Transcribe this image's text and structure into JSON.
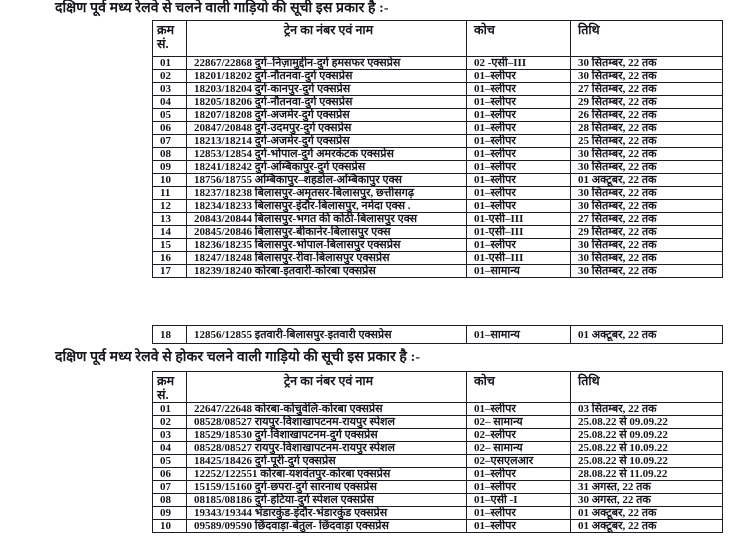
{
  "document": {
    "heading1": "दक्षिण पूर्व मध्य रेलवे से चलने वाली गाड़ियो की सूची इस प्रकार है :-",
    "heading2": "दक्षिण पूर्व मध्य रेलवे से होकर चलने वाली गाड़ियो की सूची इस प्रकार है :-"
  },
  "columns": {
    "sno": "क्रम सं.",
    "train": "ट्रेन का नंबर एवं नाम",
    "coach": "कोच",
    "date": "तिथि"
  },
  "tables": {
    "main": {
      "rows": [
        [
          "01",
          "22867/22868 दुर्ग–निज़ामुद्दीन-दुर्ग हमसफर एक्सप्रेस",
          "02 -एसी–III",
          "30 सितम्बर, 22 तक"
        ],
        [
          "02",
          "18201/18202 दुर्ग-नौतनवा-दुर्ग  एक्सप्रेस",
          "01–स्लीपर",
          "30 सितम्बर, 22 तक"
        ],
        [
          "03",
          "18203/18204 दुर्ग-कानपुर-दुर्ग  एक्सप्रेस",
          "01–स्लीपर",
          "27 सितम्बर, 22 तक"
        ],
        [
          "04",
          "18205/18206 दुर्ग-नौतनवा-दुर्ग  एक्सप्रेस",
          "01–स्लीपर",
          "29 सितम्बर, 22 तक"
        ],
        [
          "05",
          "18207/18208 दुर्ग-अजमेर-दुर्ग  एक्सप्रेस",
          "01–स्लीपर",
          "26 सितम्बर, 22 तक"
        ],
        [
          "06",
          "20847/20848 दुर्ग-उदमपुर-दुर्ग  एक्सप्रेस",
          "01–स्लीपर",
          "28 सितम्बर, 22 तक"
        ],
        [
          "07",
          "18213/18214 दुर्ग-अजमेर-दुर्ग  एक्सप्रेस",
          "01–स्लीपर",
          "25 सितम्बर, 22 तक"
        ],
        [
          "08",
          "12853/12854 दुर्ग-भोपाल-दुर्ग अमरकंटक  एक्सप्रेस",
          "01–स्लीपर",
          "30 सितम्बर, 22 तक"
        ],
        [
          "09",
          "18241/18242 दुर्ग-अम्बिकापुर-दुर्ग  एक्सप्रेस",
          "01–स्लीपर",
          "30 सितम्बर, 22 तक"
        ],
        [
          "10",
          "18756/18755 अम्बिकापुर–शहडोल-अम्बिकापुर एक्स",
          "01–स्लीपर",
          "01 अक्टूबर, 22 तक"
        ],
        [
          "11",
          "18237/18238 बिलासपुर-अमृतसर-बिलासपुर, छत्तीसगढ़",
          "01–स्लीपर",
          "30 सितम्बर, 22 तक"
        ],
        [
          "12",
          "18234/18233 बिलासपुर-इंदौर-बिलासपुर, नर्मदा एक्स .",
          "01–स्लीपर",
          "30 सितम्बर, 22 तक"
        ],
        [
          "13",
          "20843/20844 बिलासपुर-भगत की कोठी-बिलासपुर एक्स",
          "01-एसी–III",
          "27 सितम्बर, 22 तक"
        ],
        [
          "14",
          "20845/20846 बिलासपुर-बीकानेर-बिलासपुर एक्स",
          "01-एसी–III",
          "29 सितम्बर, 22 तक"
        ],
        [
          "15",
          "18236/18235 बिलासपुर-भोपाल-बिलासपुर एक्सप्रेस",
          "01–स्लीपर",
          "30 सितम्बर, 22 तक"
        ],
        [
          "16",
          "18247/18248 बिलासपुर-रीवा-बिलासपुर एक्सप्रेस",
          "01-एसी–III",
          "30 सितम्बर, 22 तक"
        ],
        [
          "17",
          "18239/18240 कोरबा-इतवारी-कोरबा एक्सप्रेस",
          "01–सामान्य",
          "30 सितम्बर, 22 तक"
        ]
      ]
    },
    "continuation": {
      "rows": [
        [
          "18",
          "12856/12855 इतवारी-बिलासपुर-इतवारी एक्सप्रेस",
          "01–सामान्य",
          "01 अक्टूबर, 22 तक"
        ]
      ]
    },
    "through": {
      "rows": [
        [
          "01",
          "22647/22648 कोरबा-कोचुवेलि-कोरबा एक्सप्रेस",
          "01–स्लीपर",
          "03 सितम्बर, 22 तक"
        ],
        [
          "02",
          "08528/08527 रायपुर-विशाखापटनम-रायपुर स्पेशल",
          "02– सामान्य",
          "25.08.22 से 09.09.22"
        ],
        [
          "03",
          "18529/18530 दुर्ग-विशाखापटनम-दुर्ग  एक्सप्रेस",
          "02–स्लीपर",
          "25.08.22 से 09.09.22"
        ],
        [
          "04",
          "08528/08527 रायपुर-विशाखापटनम-रायपुर स्पेशल",
          "02– सामान्य",
          "25.08.22 से 10.09.22"
        ],
        [
          "05",
          "18425/18426 दुर्ग-पूरी-दुर्ग  एक्सप्रेस",
          "02–एसएलआर",
          "25.08.22 से 10.09.22"
        ],
        [
          "06",
          "12252/122551 कोरबा-यशवंतपुर-कोरबा एक्सप्रेस",
          "01–स्लीपर",
          "28.08.22 से 11.09.22"
        ],
        [
          "07",
          "15159/15160 दुर्ग-छपरा-दुर्ग सारनाथ एक्सप्रेस",
          "01–स्लीपर",
          "31 अगस्त, 22 तक"
        ],
        [
          "08",
          "08185/08186 दुर्ग-हटिया-दुर्ग स्पेशल एक्सप्रेस",
          "01–एसी -I",
          "30 अगस्त, 22 तक"
        ],
        [
          "09",
          "19343/19344 भंडारकुंड-इंदौर-भंडारकुंड एक्सप्रेस",
          "01–स्लीपर",
          "01 अक्टूबर, 22 तक"
        ],
        [
          "10",
          "09589/09590 छिंदवाड़ा-बेतुल- छिंदवाड़ा एक्सप्रेस",
          "01–स्लीपर",
          "01 अक्टूबर, 22 तक"
        ]
      ]
    }
  }
}
